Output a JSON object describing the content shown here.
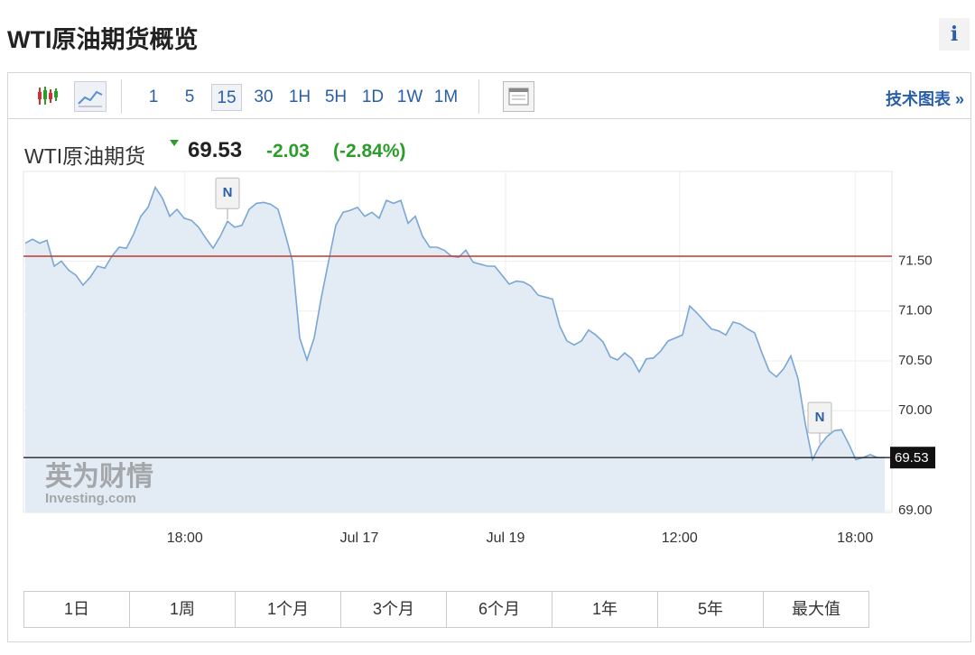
{
  "header": {
    "title": "WTI原油期货概览",
    "info": "i"
  },
  "toolbar": {
    "intervals": [
      "1",
      "5",
      "15",
      "30",
      "1H",
      "5H",
      "1D",
      "1W",
      "1M"
    ],
    "active_interval": 2,
    "technical_link": "技术图表 »"
  },
  "quote": {
    "name": "WTI原油期货",
    "price": 69.53,
    "change": -2.03,
    "change_pct": "(-2.84%)"
  },
  "chart_data": {
    "type": "area",
    "values": [
      71.68,
      71.72,
      71.68,
      71.71,
      71.45,
      71.5,
      71.41,
      71.36,
      71.26,
      71.34,
      71.45,
      71.43,
      71.55,
      71.64,
      71.63,
      71.77,
      71.95,
      72.04,
      72.24,
      72.13,
      71.95,
      72.02,
      71.93,
      71.91,
      71.84,
      71.73,
      71.63,
      71.75,
      71.9,
      71.84,
      71.86,
      72.02,
      72.08,
      72.09,
      72.07,
      72.02,
      71.77,
      71.5,
      70.73,
      70.51,
      70.73,
      71.14,
      71.5,
      71.86,
      71.99,
      72.01,
      72.04,
      71.95,
      71.99,
      71.93,
      72.11,
      72.08,
      72.11,
      71.88,
      71.95,
      71.75,
      71.64,
      71.64,
      71.61,
      71.55,
      71.54,
      71.61,
      71.49,
      71.47,
      71.45,
      71.45,
      71.36,
      71.27,
      71.3,
      71.29,
      71.25,
      71.16,
      71.14,
      71.12,
      70.85,
      70.7,
      70.66,
      70.7,
      70.81,
      70.76,
      70.69,
      70.54,
      70.51,
      70.58,
      70.52,
      70.39,
      70.52,
      70.53,
      70.6,
      70.7,
      70.73,
      70.76,
      71.05,
      70.98,
      70.9,
      70.82,
      70.8,
      70.76,
      70.89,
      70.87,
      70.82,
      70.78,
      70.58,
      70.4,
      70.34,
      70.42,
      70.55,
      70.32,
      69.87,
      69.51,
      69.65,
      69.74,
      69.8,
      69.81,
      69.67,
      69.51,
      69.53,
      69.56,
      69.53,
      69.53
    ],
    "color": "#7aa6d6",
    "fill": "#e3ecf4",
    "xlim": [
      -0.25,
      120
    ],
    "ylim": [
      68.98,
      72.4
    ],
    "xticks": [
      {
        "value": 22.1,
        "label": "18:00"
      },
      {
        "value": 46.25,
        "label": "Jul 17"
      },
      {
        "value": 66.5,
        "label": "Jul 19"
      },
      {
        "value": 90.6,
        "label": "12:00"
      },
      {
        "value": 114.9,
        "label": "18:00"
      }
    ],
    "yticks": [
      {
        "value": 69,
        "label": "69.00"
      },
      {
        "value": 70,
        "label": "70.00"
      },
      {
        "value": 70.5,
        "label": "70.50"
      },
      {
        "value": 71,
        "label": "71.00"
      },
      {
        "value": 71.5,
        "label": "71.50"
      }
    ],
    "reference_line": 71.55,
    "reference_color": "#c0392b",
    "annotations": [
      {
        "x": 28,
        "label": "N"
      },
      {
        "x": 110,
        "label": "N"
      }
    ],
    "grid": true
  },
  "watermark": {
    "cn": "英为财情",
    "en": "Investing.com"
  },
  "ranges": [
    "1日",
    "1周",
    "1个月",
    "3个月",
    "6个月",
    "1年",
    "5年",
    "最大值"
  ]
}
